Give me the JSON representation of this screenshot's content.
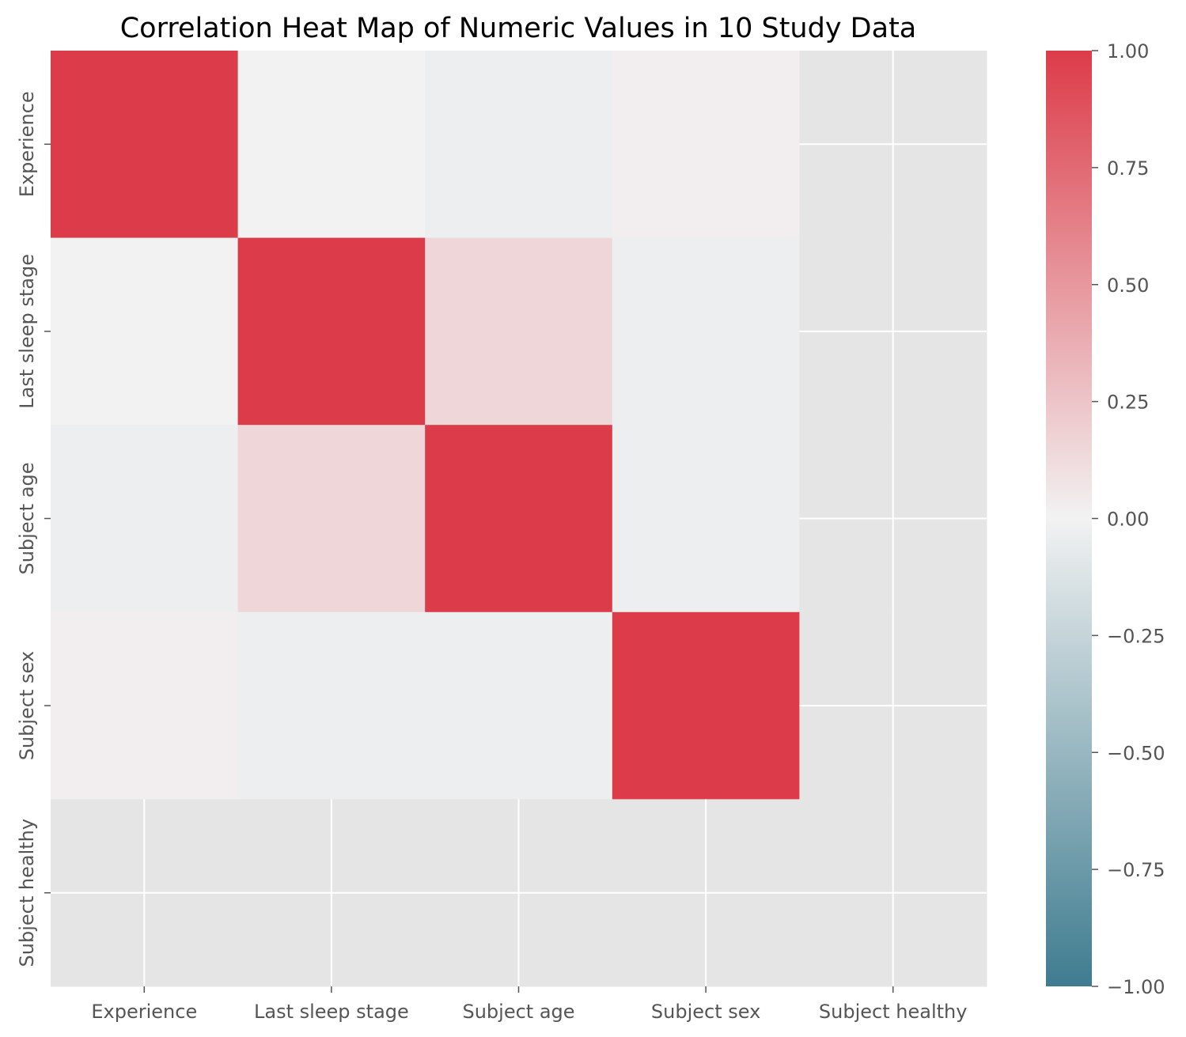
{
  "colors": {
    "negative": "#3e7c8f",
    "neutral": "#f2f2f2",
    "positive": "#dc3c49",
    "missing": "#e5e5e5",
    "grid": "#ffffff",
    "tick": "#555555"
  },
  "chart_data": {
    "type": "heatmap",
    "title": "Correlation Heat Map of Numeric Values in 10 Study Data",
    "x_labels": [
      "Experience",
      "Last sleep stage",
      "Subject age",
      "Subject sex",
      "Subject healthy"
    ],
    "y_labels": [
      "Experience",
      "Last sleep stage",
      "Subject age",
      "Subject sex",
      "Subject healthy"
    ],
    "values": [
      [
        1.0,
        0.0,
        -0.03,
        0.02,
        null
      ],
      [
        0.0,
        1.0,
        0.15,
        -0.03,
        null
      ],
      [
        -0.03,
        0.15,
        1.0,
        -0.03,
        null
      ],
      [
        0.02,
        -0.03,
        -0.03,
        1.0,
        null
      ],
      [
        null,
        null,
        null,
        null,
        null
      ]
    ],
    "vmin": -1.0,
    "vmax": 1.0,
    "colorbar_ticks": [
      "1.00",
      "0.75",
      "0.50",
      "0.25",
      "0.00",
      "−0.25",
      "−0.50",
      "−0.75",
      "−1.00"
    ],
    "colorbar_tick_values": [
      1.0,
      0.75,
      0.5,
      0.25,
      0.0,
      -0.25,
      -0.5,
      -0.75,
      -1.0
    ],
    "grid": true,
    "legend": "colorbar-right"
  }
}
